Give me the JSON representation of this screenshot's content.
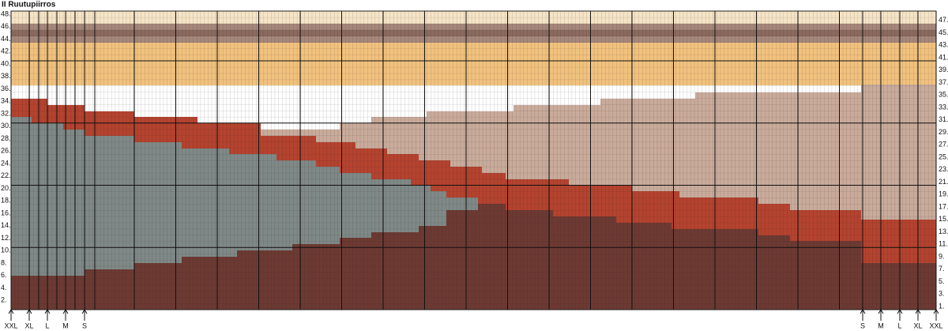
{
  "title": "II Ruutupiirros",
  "left_row_labels": [
    "48.",
    "46.",
    "44.",
    "42.",
    "40.",
    "38.",
    "36.",
    "34.",
    "32.",
    "30.",
    "28.",
    "26.",
    "24.",
    "22.",
    "20.",
    "18.",
    "16.",
    "14.",
    "12.",
    "10.",
    "8.",
    "6.",
    "4.",
    "2."
  ],
  "right_row_labels": [
    "47.",
    "45.",
    "43.",
    "41.",
    "39.",
    "37.",
    "35.",
    "33.",
    "31.",
    "29.",
    "27.",
    "25.",
    "23.",
    "21.",
    "19.",
    "17.",
    "15.",
    "13.",
    "11.",
    "9.",
    "7.",
    "5.",
    "3.",
    "1."
  ],
  "size_labels_left": [
    "XXL",
    "XL",
    "L",
    "M",
    "S"
  ],
  "size_labels_right": [
    "S",
    "M",
    "L",
    "XL",
    "XXL"
  ]
}
